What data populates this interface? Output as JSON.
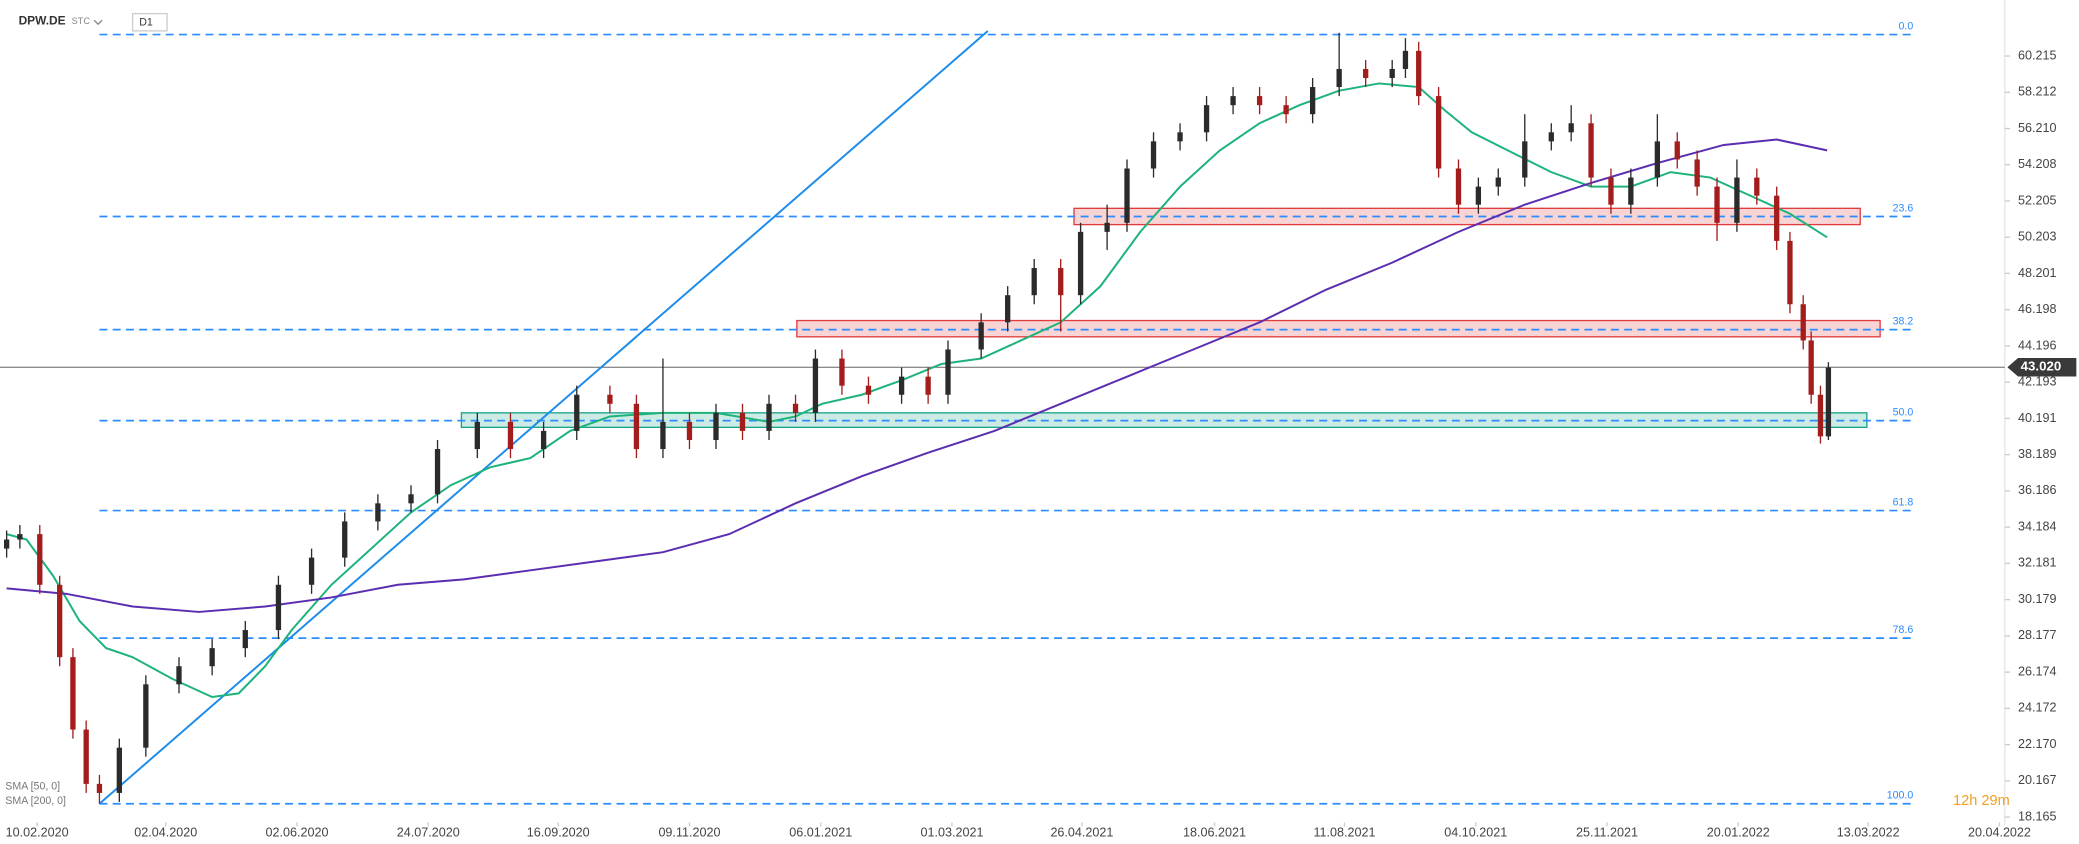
{
  "chart_data": {
    "type": "candlestick",
    "symbol": "DPW.DE",
    "market": "STC",
    "interval": "D1",
    "timer": "12h 29m",
    "xlim": [
      0,
      1510
    ],
    "ylim": [
      17.87,
      63.29
    ],
    "xticks": [
      {
        "value": 28,
        "label": "10.02.2020"
      },
      {
        "value": 125,
        "label": "02.04.2020"
      },
      {
        "value": 224,
        "label": "02.06.2020"
      },
      {
        "value": 323,
        "label": "24.07.2020"
      },
      {
        "value": 421,
        "label": "16.09.2020"
      },
      {
        "value": 520,
        "label": "09.11.2020"
      },
      {
        "value": 619,
        "label": "06.01.2021"
      },
      {
        "value": 718,
        "label": "01.03.2021"
      },
      {
        "value": 816,
        "label": "26.04.2021"
      },
      {
        "value": 916,
        "label": "18.06.2021"
      },
      {
        "value": 1014,
        "label": "11.08.2021"
      },
      {
        "value": 1113,
        "label": "04.10.2021"
      },
      {
        "value": 1212,
        "label": "25.11.2021"
      },
      {
        "value": 1311,
        "label": "20.01.2022"
      },
      {
        "value": 1409,
        "label": "13.03.2022"
      },
      {
        "value": 1508,
        "label": "20.04.2022"
      }
    ],
    "yticks": [
      60.215,
      58.212,
      {
        "value": 56.21,
        "label": "56.210"
      },
      54.208,
      52.205,
      50.203,
      48.201,
      46.198,
      44.196,
      42.193,
      40.191,
      38.189,
      36.186,
      34.184,
      32.181,
      30.179,
      28.177,
      26.174,
      24.172,
      {
        "value": 22.17,
        "label": "22.170"
      },
      20.167,
      18.165
    ],
    "current_price": {
      "value": 43.02,
      "label": "43.020"
    },
    "up_color": "#2b2b2b",
    "down_color": "#a31d1d",
    "x": [
      5,
      15,
      30,
      45,
      55,
      65,
      75,
      90,
      110,
      135,
      160,
      185,
      210,
      235,
      260,
      285,
      310,
      330,
      360,
      385,
      410,
      435,
      460,
      480,
      500,
      520,
      540,
      560,
      580,
      600,
      615,
      635,
      655,
      680,
      700,
      715,
      740,
      760,
      780,
      800,
      815,
      835,
      850,
      870,
      890,
      910,
      930,
      950,
      970,
      990,
      1010,
      1030,
      1050,
      1060,
      1070,
      1085,
      1100,
      1115,
      1130,
      1150,
      1170,
      1185,
      1200,
      1215,
      1230,
      1250,
      1265,
      1280,
      1295,
      1310,
      1325,
      1340,
      1350,
      1360,
      1366,
      1373,
      1379
    ],
    "ohlc": [
      [
        33.0,
        34.0,
        32.5,
        33.5
      ],
      [
        33.5,
        34.3,
        33.0,
        33.8
      ],
      [
        33.8,
        34.3,
        30.5,
        31.0
      ],
      [
        31.0,
        31.5,
        26.5,
        27.0
      ],
      [
        27.0,
        27.5,
        22.5,
        23.0
      ],
      [
        23.0,
        23.5,
        19.5,
        20.0
      ],
      [
        20.0,
        20.5,
        18.9,
        19.5
      ],
      [
        19.5,
        22.5,
        19.0,
        22.0
      ],
      [
        22.0,
        26.0,
        21.5,
        25.5
      ],
      [
        25.5,
        27.0,
        25.0,
        26.5
      ],
      [
        26.5,
        28.0,
        26.0,
        27.5
      ],
      [
        27.5,
        29.0,
        27.0,
        28.5
      ],
      [
        28.5,
        31.5,
        28.0,
        31.0
      ],
      [
        31.0,
        33.0,
        30.5,
        32.5
      ],
      [
        32.5,
        35.0,
        32.0,
        34.5
      ],
      [
        34.5,
        36.0,
        34.0,
        35.5
      ],
      [
        35.5,
        36.5,
        35.0,
        36.0
      ],
      [
        36.0,
        39.0,
        35.5,
        38.5
      ],
      [
        38.5,
        40.5,
        38.0,
        40.0
      ],
      [
        40.0,
        40.5,
        38.0,
        38.5
      ],
      [
        38.5,
        40.0,
        38.0,
        39.5
      ],
      [
        39.5,
        42.0,
        39.0,
        41.5
      ],
      [
        41.5,
        42.0,
        40.5,
        41.0
      ],
      [
        41.0,
        41.5,
        38.0,
        38.5
      ],
      [
        38.5,
        43.5,
        38.0,
        40.0
      ],
      [
        40.0,
        40.5,
        38.5,
        39.0
      ],
      [
        39.0,
        41.0,
        38.5,
        40.5
      ],
      [
        40.5,
        41.0,
        39.0,
        39.5
      ],
      [
        39.5,
        41.5,
        39.0,
        41.0
      ],
      [
        41.0,
        41.5,
        40.0,
        40.5
      ],
      [
        40.5,
        44.0,
        40.0,
        43.5
      ],
      [
        43.5,
        44.0,
        41.5,
        42.0
      ],
      [
        42.0,
        42.5,
        41.0,
        41.5
      ],
      [
        41.5,
        43.0,
        41.0,
        42.5
      ],
      [
        42.5,
        43.0,
        41.0,
        41.5
      ],
      [
        41.5,
        44.5,
        41.0,
        44.0
      ],
      [
        44.0,
        46.0,
        43.5,
        45.5
      ],
      [
        45.5,
        47.5,
        45.0,
        47.0
      ],
      [
        47.0,
        49.0,
        46.5,
        48.5
      ],
      [
        48.5,
        49.0,
        45.0,
        47.0
      ],
      [
        47.0,
        51.0,
        46.5,
        50.5
      ],
      [
        50.5,
        52.0,
        49.5,
        51.0
      ],
      [
        51.0,
        54.5,
        50.5,
        54.0
      ],
      [
        54.0,
        56.0,
        53.5,
        55.5
      ],
      [
        55.5,
        56.5,
        55.0,
        56.0
      ],
      [
        56.0,
        58.0,
        55.5,
        57.5
      ],
      [
        57.5,
        58.5,
        57.0,
        58.0
      ],
      [
        58.0,
        58.5,
        57.0,
        57.5
      ],
      [
        57.5,
        58.0,
        56.5,
        57.0
      ],
      [
        57.0,
        59.0,
        56.5,
        58.5
      ],
      [
        58.5,
        61.5,
        58.0,
        59.5
      ],
      [
        59.5,
        60.0,
        58.5,
        59.0
      ],
      [
        59.0,
        60.0,
        58.5,
        59.5
      ],
      [
        59.5,
        61.2,
        59.0,
        60.5
      ],
      [
        60.5,
        61.0,
        57.5,
        58.0
      ],
      [
        58.0,
        58.5,
        53.5,
        54.0
      ],
      [
        54.0,
        54.5,
        51.5,
        52.0
      ],
      [
        52.0,
        53.5,
        51.5,
        53.0
      ],
      [
        53.0,
        54.0,
        52.5,
        53.5
      ],
      [
        53.5,
        57.0,
        53.0,
        55.5
      ],
      [
        55.5,
        56.5,
        55.0,
        56.0
      ],
      [
        56.0,
        57.5,
        55.5,
        56.5
      ],
      [
        56.5,
        57.0,
        53.0,
        53.5
      ],
      [
        53.5,
        54.0,
        51.5,
        52.0
      ],
      [
        52.0,
        54.0,
        51.5,
        53.5
      ],
      [
        53.5,
        57.0,
        53.0,
        55.5
      ],
      [
        55.5,
        56.0,
        54.0,
        54.5
      ],
      [
        54.5,
        55.0,
        52.5,
        53.0
      ],
      [
        53.0,
        53.5,
        50.0,
        51.0
      ],
      [
        51.0,
        54.5,
        50.5,
        53.5
      ],
      [
        53.5,
        54.0,
        52.0,
        52.5
      ],
      [
        52.5,
        53.0,
        49.5,
        50.0
      ],
      [
        50.0,
        50.5,
        46.0,
        46.5
      ],
      [
        46.5,
        47.0,
        44.0,
        44.5
      ],
      [
        44.5,
        45.0,
        41.0,
        41.5
      ],
      [
        41.5,
        42.0,
        38.8,
        39.2
      ],
      [
        39.2,
        43.3,
        39.0,
        43.0
      ]
    ],
    "series": [
      {
        "name": "SMA [50, 0]",
        "color": "#1db37a",
        "x": [
          5,
          20,
          40,
          60,
          80,
          100,
          130,
          160,
          180,
          200,
          220,
          250,
          280,
          310,
          340,
          370,
          400,
          430,
          460,
          500,
          540,
          580,
          600,
          620,
          650,
          680,
          710,
          740,
          770,
          800,
          830,
          860,
          890,
          920,
          950,
          980,
          1010,
          1040,
          1070,
          1090,
          1110,
          1140,
          1170,
          1200,
          1230,
          1260,
          1290,
          1320,
          1350,
          1378
        ],
        "values": [
          33.8,
          33.5,
          31.5,
          29,
          27.5,
          27,
          25.8,
          24.8,
          25,
          26.5,
          28.5,
          31,
          33,
          35,
          36.5,
          37.5,
          38,
          39.5,
          40.3,
          40.5,
          40.5,
          40,
          40.3,
          41,
          41.5,
          42.3,
          43.2,
          43.5,
          44.5,
          45.5,
          47.5,
          50.5,
          53,
          55,
          56.5,
          57.5,
          58.3,
          58.7,
          58.5,
          57.2,
          56,
          54.9,
          53.8,
          53,
          53,
          53.8,
          53.5,
          52.5,
          51.5,
          50.2
        ]
      },
      {
        "name": "SMA [200, 0]",
        "color": "#5b2db0",
        "x": [
          5,
          50,
          100,
          150,
          200,
          250,
          300,
          350,
          400,
          450,
          500,
          550,
          600,
          650,
          700,
          750,
          800,
          850,
          900,
          950,
          1000,
          1050,
          1100,
          1150,
          1200,
          1250,
          1300,
          1340,
          1378
        ],
        "values": [
          30.8,
          30.5,
          29.8,
          29.5,
          29.8,
          30.3,
          31,
          31.3,
          31.8,
          32.3,
          32.8,
          33.8,
          35.5,
          37,
          38.3,
          39.5,
          41,
          42.5,
          44,
          45.5,
          47.3,
          48.8,
          50.5,
          52,
          53.2,
          54.3,
          55.3,
          55.6,
          55
        ]
      }
    ],
    "fib_levels": [
      {
        "name": "0.0",
        "price": 61.4
      },
      {
        "name": "23.6",
        "price": 51.35
      },
      {
        "name": "38.2",
        "price": 45.1
      },
      {
        "name": "50.0",
        "price": 40.07
      },
      {
        "name": "61.8",
        "price": 35.1
      },
      {
        "name": "78.6",
        "price": 28.05
      },
      {
        "name": "100.0",
        "price": 18.9
      }
    ],
    "fib_x": [
      75,
      1445
    ],
    "zones": [
      {
        "color": "#e03c3c",
        "x": [
          810,
          1403
        ],
        "price": [
          50.9,
          51.8
        ]
      },
      {
        "color": "#e03c3c",
        "x": [
          601,
          1418
        ],
        "price": [
          44.7,
          45.6
        ]
      },
      {
        "color": "#17a589",
        "x": [
          348,
          1408
        ],
        "price": [
          39.7,
          40.5
        ]
      }
    ],
    "trendline": {
      "x": [
        75,
        745
      ],
      "price": [
        18.9,
        61.6
      ],
      "color": "#1f8ceb"
    }
  }
}
